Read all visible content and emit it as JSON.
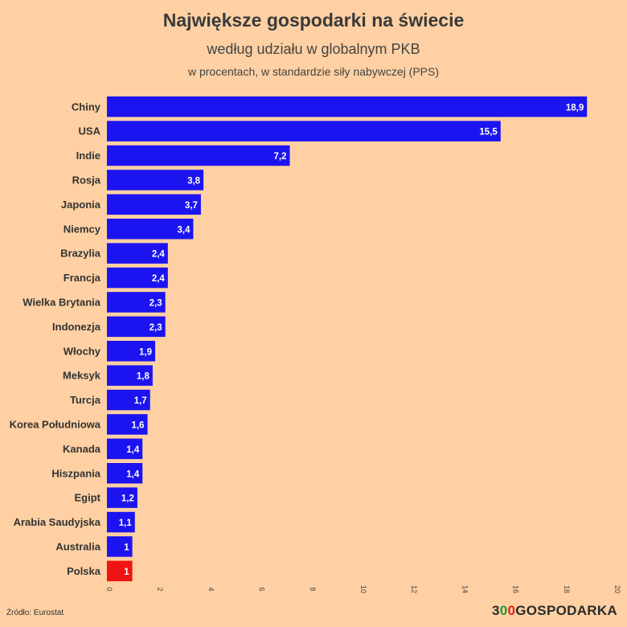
{
  "header": {
    "title": "Największe gospodarki na świecie",
    "subtitle": "według udziału w globalnym PKB",
    "subsubtitle": "w procentach, w standardzie siły nabywczej (PPS)"
  },
  "footer": {
    "source": "Źródło: Eurostat",
    "brand_prefix": "3",
    "brand_zero_green": "0",
    "brand_zero_red": "0",
    "brand_suffix": "GOSPODARKA"
  },
  "colors": {
    "bar": "#1c14f0",
    "highlight": "#f01414",
    "background": "#ffd0a3",
    "label_text": "#ffffff"
  },
  "chart_data": {
    "type": "bar",
    "orientation": "horizontal",
    "categories": [
      "Chiny",
      "USA",
      "Indie",
      "Rosja",
      "Japonia",
      "Niemcy",
      "Brazylia",
      "Francja",
      "Wielka Brytania",
      "Indonezja",
      "Włochy",
      "Meksyk",
      "Turcja",
      "Korea Południowa",
      "Kanada",
      "Hiszpania",
      "Egipt",
      "Arabia Saudyjska",
      "Australia",
      "Polska"
    ],
    "values": [
      18.9,
      15.5,
      7.2,
      3.8,
      3.7,
      3.4,
      2.4,
      2.4,
      2.3,
      2.3,
      1.9,
      1.8,
      1.7,
      1.6,
      1.4,
      1.4,
      1.2,
      1.1,
      1,
      1
    ],
    "value_labels": [
      "18,9",
      "15,5",
      "7,2",
      "3,8",
      "3,7",
      "3,4",
      "2,4",
      "2,4",
      "2,3",
      "2,3",
      "1,9",
      "1,8",
      "1,7",
      "1,6",
      "1,4",
      "1,4",
      "1,2",
      "1,1",
      "1",
      "1"
    ],
    "highlight_category": "Polska",
    "xlim": [
      0,
      20
    ],
    "xticks": [
      0,
      2,
      4,
      6,
      8,
      10,
      12,
      14,
      16,
      18,
      20
    ],
    "grid": false
  }
}
